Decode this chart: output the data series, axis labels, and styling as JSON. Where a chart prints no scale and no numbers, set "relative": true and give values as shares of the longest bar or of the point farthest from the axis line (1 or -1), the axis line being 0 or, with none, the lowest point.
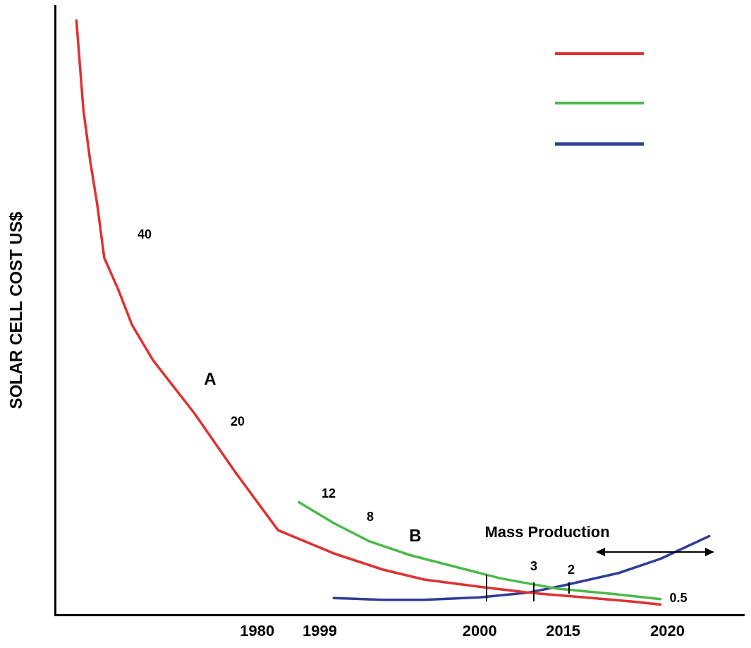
{
  "chart_data": {
    "type": "line",
    "ylabel": "SOLAR CELL COST US$",
    "relative": true,
    "grid": false,
    "marker": "none",
    "line_style": "solid",
    "categories": [
      null,
      null,
      null,
      null,
      null,
      null,
      null,
      null,
      null,
      null,
      null,
      null,
      null,
      null,
      null,
      null,
      null,
      null,
      null,
      null,
      null,
      null,
      null,
      null,
      null,
      null,
      null,
      null,
      null,
      "1980",
      null,
      null,
      null,
      null,
      null,
      null,
      null,
      null,
      "1999",
      null,
      null,
      null,
      null,
      null,
      null,
      null,
      null,
      null,
      null,
      null,
      null,
      null,
      null,
      null,
      null,
      null,
      null,
      null,
      null,
      null,
      null,
      "2000",
      null,
      null,
      null,
      null,
      null,
      null,
      null,
      null,
      null,
      null,
      null,
      "2015",
      null,
      null,
      null,
      null,
      null,
      null,
      null,
      null,
      null,
      null,
      null,
      null,
      null,
      null,
      "2020",
      null,
      null,
      null,
      null,
      null,
      null,
      null,
      null,
      null,
      null,
      null
    ],
    "series": [
      {
        "color": "#e03030",
        "values": [
          null,
          null,
          null,
          1,
          0.85,
          0.762,
          0.69,
          0.601,
          null,
          0.548,
          null,
          0.488,
          null,
          null,
          0.429,
          null,
          null,
          null,
          null,
          null,
          0.339,
          null,
          null,
          null,
          null,
          null,
          0.238,
          null,
          null,
          null,
          null,
          null,
          0.143,
          null,
          null,
          null,
          null,
          null,
          null,
          null,
          0.104,
          null,
          null,
          null,
          null,
          null,
          null,
          0.077,
          null,
          null,
          null,
          null,
          null,
          0.06,
          null,
          null,
          null,
          null,
          null,
          null,
          null,
          0.048,
          null,
          null,
          null,
          null,
          null,
          null,
          0.038,
          null,
          null,
          null,
          null,
          null,
          null,
          null,
          0.03,
          null,
          null,
          null,
          null,
          null,
          null,
          0.023,
          null,
          null,
          null,
          0.018,
          null,
          null,
          null,
          null,
          null,
          null,
          null,
          null,
          null,
          null,
          null,
          null
        ]
      },
      {
        "color": "#4cb848",
        "values": [
          null,
          null,
          null,
          null,
          null,
          null,
          null,
          null,
          null,
          null,
          null,
          null,
          null,
          null,
          null,
          null,
          null,
          null,
          null,
          null,
          null,
          null,
          null,
          null,
          null,
          null,
          null,
          null,
          null,
          null,
          null,
          null,
          null,
          null,
          null,
          0.19,
          null,
          null,
          null,
          null,
          0.155,
          null,
          null,
          null,
          null,
          0.125,
          null,
          null,
          null,
          null,
          null,
          0.101,
          null,
          null,
          null,
          null,
          null,
          null,
          0.08,
          null,
          null,
          null,
          null,
          null,
          0.062,
          null,
          null,
          null,
          null,
          null,
          null,
          null,
          0.045,
          null,
          null,
          null,
          null,
          null,
          null,
          null,
          0.036,
          null,
          null,
          null,
          null,
          null,
          null,
          0.027,
          null,
          null,
          null,
          null,
          null,
          null,
          null,
          null,
          null,
          null,
          null,
          null
        ]
      },
      {
        "color": "#2e3d96",
        "values": [
          null,
          null,
          null,
          null,
          null,
          null,
          null,
          null,
          null,
          null,
          null,
          null,
          null,
          null,
          null,
          null,
          null,
          null,
          null,
          null,
          null,
          null,
          null,
          null,
          null,
          null,
          null,
          null,
          null,
          null,
          null,
          null,
          null,
          null,
          null,
          null,
          null,
          null,
          null,
          null,
          0.029,
          null,
          null,
          null,
          null,
          null,
          null,
          0.026,
          null,
          null,
          null,
          null,
          null,
          0.026,
          null,
          null,
          null,
          null,
          null,
          null,
          null,
          0.03,
          null,
          null,
          null,
          null,
          null,
          null,
          0.038,
          null,
          null,
          null,
          null,
          0.05,
          null,
          null,
          null,
          null,
          null,
          null,
          null,
          0.071,
          null,
          null,
          null,
          null,
          null,
          0.095,
          null,
          null,
          null,
          null,
          null,
          null,
          0.133,
          null,
          null,
          null,
          null,
          null
        ]
      }
    ],
    "annotations": [
      "40",
      "A",
      "20",
      "12",
      "8",
      "B",
      "Mass Production",
      "3",
      "2",
      "0.5"
    ]
  }
}
